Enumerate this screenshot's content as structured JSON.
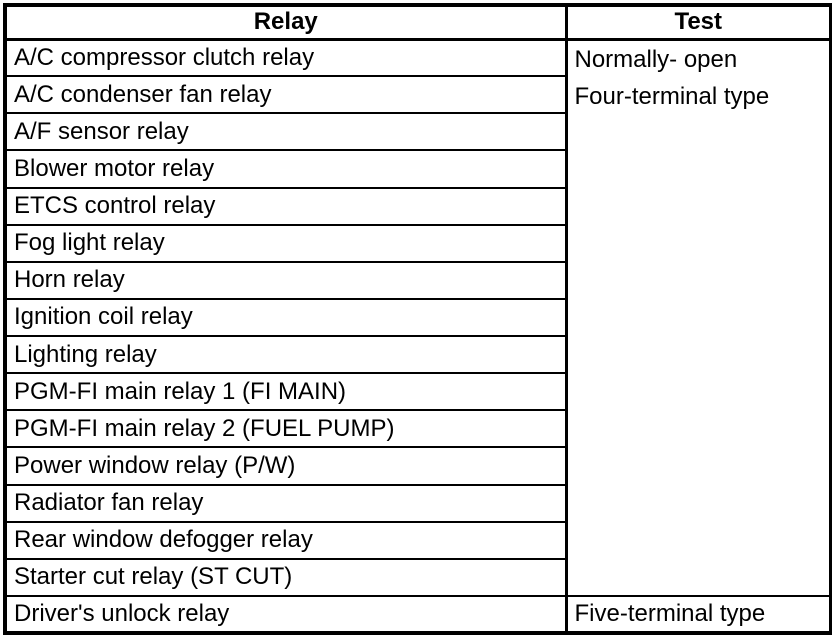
{
  "table": {
    "headers": [
      "Relay",
      "Test"
    ],
    "relay_rows": [
      "A/C compressor clutch relay",
      "A/C condenser fan relay",
      "A/F sensor relay",
      "Blower motor relay",
      "ETCS control relay",
      "Fog light relay",
      "Horn relay",
      "Ignition coil relay",
      "Lighting relay",
      "PGM-FI main relay 1 (FI MAIN)",
      "PGM-FI main relay 2 (FUEL PUMP)",
      "Power window relay (P/W)",
      "Radiator fan relay",
      "Rear window defogger relay",
      "Starter cut relay (ST CUT)"
    ],
    "merged_test": {
      "line1": "Normally- open",
      "line2": "Four-terminal type"
    },
    "last_row": {
      "relay": "Driver's unlock relay",
      "test": "Five-terminal type"
    },
    "colors": {
      "border": "#000000",
      "background": "#ffffff",
      "text": "#000000"
    }
  }
}
